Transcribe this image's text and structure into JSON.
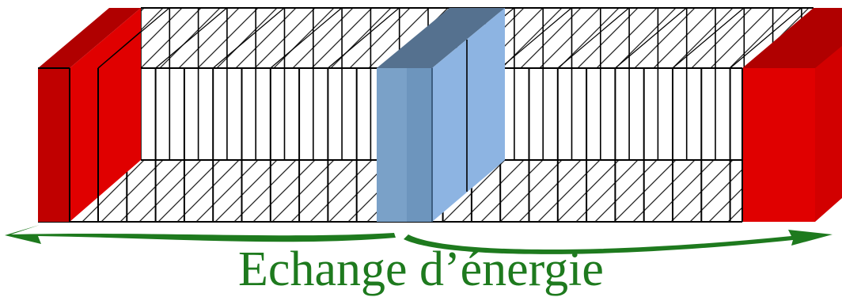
{
  "caption": {
    "text": "Echange d’énergie"
  },
  "colors": {
    "hot_wall": "#e00000",
    "hot_wall_dark": "#b00000",
    "hot_wall_light": "#d20000",
    "blue_slab": "#8db4e2",
    "blue_slab_mid": "#6d95bd",
    "blue_slab_dark": "#55718f",
    "arrow_green": "#1e7a1e",
    "caption_green": "#1e7a1e",
    "lines": "#000000",
    "hatch": "#222222"
  }
}
